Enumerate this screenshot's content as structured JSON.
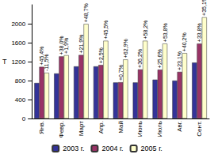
{
  "chart_data": {
    "type": "bar",
    "y_label": "Т",
    "categories": [
      "Янв.",
      "Февр.",
      "Март",
      "Апр.",
      "Май",
      "Июнь",
      "Июль",
      "Авг.",
      "Сент."
    ],
    "series": [
      {
        "name": "2003 г.",
        "color": "#333399",
        "values": [
          750,
          950,
          1100,
          1100,
          760,
          760,
          820,
          800,
          1180
        ]
      },
      {
        "name": "2004 г.",
        "color": "#993366",
        "values": [
          1090,
          1310,
          1340,
          1130,
          765,
          1035,
          1030,
          985,
          1580
        ],
        "annotations": [
          "+45,4%",
          "+38,0%",
          "+21,9%",
          "+2,5%",
          "+0,7%",
          "+36,2%",
          "+25,6%",
          "+23,1%",
          "+33,8%"
        ]
      },
      {
        "name": "2005 г.",
        "color": "#ffffcc",
        "values": [
          965,
          1335,
          1995,
          1640,
          1245,
          1640,
          1580,
          1380,
          2135
        ],
        "annotations": [
          "-11,5%",
          "+1,9%",
          "+48,7%",
          "+45,5%",
          "+62,9%",
          "+58,2%",
          "+53,8%",
          "+40,2%",
          "+35,1%"
        ]
      }
    ],
    "ylim": [
      0,
      2400
    ],
    "yticks": [
      0,
      400,
      800,
      1200,
      1600,
      2000
    ],
    "grid": false,
    "legend": "bottom"
  }
}
